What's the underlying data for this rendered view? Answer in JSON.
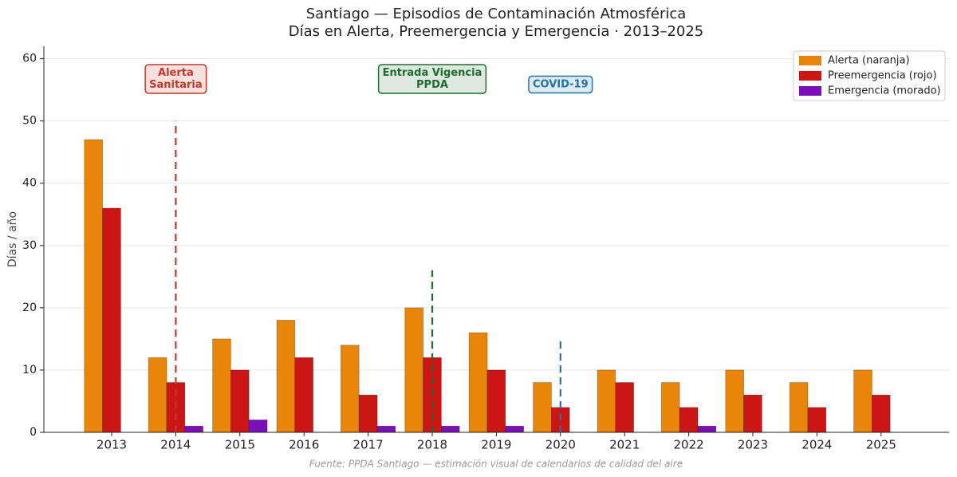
{
  "chart_data": {
    "type": "bar",
    "title": "Santiago — Episodios de Contaminación Atmosférica",
    "subtitle": "Días en Alerta, Preemergencia y Emergencia · 2013–2025",
    "y_label": "Días / año",
    "source": "Fuente: PPDA Santiago — estimación visual de calendarios de calidad del aire",
    "categories": [
      "2013",
      "2014",
      "2015",
      "2016",
      "2017",
      "2018",
      "2019",
      "2020",
      "2021",
      "2022",
      "2023",
      "2024",
      "2025"
    ],
    "series": [
      {
        "name": "Alerta (naranja)",
        "color": "#e8850a",
        "values": [
          47,
          12,
          15,
          18,
          14,
          20,
          16,
          8,
          10,
          8,
          10,
          8,
          10
        ]
      },
      {
        "name": "Preemergencia (rojo)",
        "color": "#cc1616",
        "values": [
          36,
          8,
          10,
          12,
          6,
          12,
          10,
          4,
          8,
          4,
          6,
          4,
          6
        ]
      },
      {
        "name": "Emergencia (morado)",
        "color": "#7b10b8",
        "values": [
          0,
          1,
          2,
          0,
          1,
          1,
          1,
          0,
          0,
          1,
          0,
          0,
          0
        ]
      }
    ],
    "annotations": [
      {
        "category": "2014",
        "label": [
          "Alerta",
          "Sanitaria"
        ],
        "line_top": 50,
        "color": "#c0392b"
      },
      {
        "category": "2018",
        "label": [
          "Entrada Vigencia",
          "PPDA"
        ],
        "line_top": 26,
        "color": "#1e6b2e"
      },
      {
        "category": "2020",
        "label": [
          "COVID-19"
        ],
        "line_top": 15,
        "color": "#2471a3"
      }
    ],
    "ylim": [
      0,
      62
    ],
    "yticks": [
      0,
      10,
      20,
      30,
      40,
      50,
      60
    ],
    "grid": true,
    "legend": "upper right"
  }
}
